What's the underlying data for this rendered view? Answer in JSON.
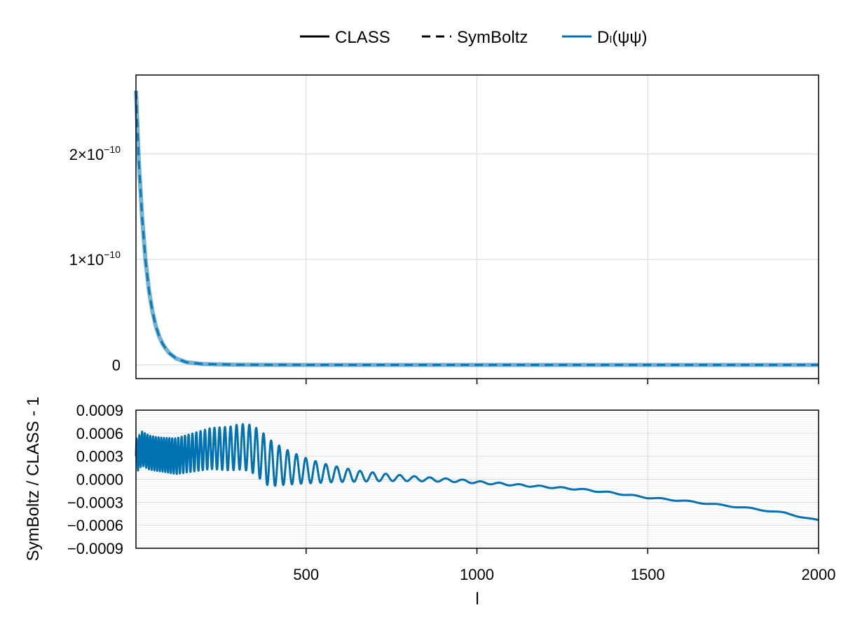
{
  "colors": {
    "class": "#000000",
    "symboltz": "#000000",
    "series": "#0072b2",
    "grid": "#d9d9d9"
  },
  "legend": {
    "position": "top-center",
    "items": [
      {
        "label": "CLASS",
        "style": "solid",
        "color": "#000000"
      },
      {
        "label": "SymBoltz",
        "style": "dashed",
        "color": "#000000"
      },
      {
        "label": "Dₗ(ψψ)",
        "style": "solid",
        "color": "#0072b2"
      }
    ]
  },
  "chart_data": [
    {
      "type": "line",
      "title": "",
      "xlabel": "",
      "ylabel": "",
      "xlim": [
        2,
        2000
      ],
      "ylim": [
        -1.3e-11,
        2.75e-10
      ],
      "grid": true,
      "x_ticks": [
        500,
        1000,
        1500,
        2000
      ],
      "x_ticklabels_visible": false,
      "y_ticks": [
        {
          "value": 0,
          "mantissa": "0",
          "exponent": ""
        },
        {
          "value": 1e-10,
          "mantissa": "1×10",
          "exponent": "−10"
        },
        {
          "value": 2e-10,
          "mantissa": "2×10",
          "exponent": "−10"
        }
      ],
      "series": [
        {
          "name": "CLASS",
          "style": "solid",
          "x": [
            2,
            10,
            20,
            30,
            40,
            50,
            60,
            70,
            80,
            90,
            100,
            120,
            150,
            200,
            300,
            500,
            1000,
            1500,
            2000
          ],
          "values": [
            2.6e-10,
            1.95e-10,
            1.4e-10,
            9.9e-11,
            7.1e-11,
            5.1e-11,
            3.7e-11,
            2.7e-11,
            2e-11,
            1.5e-11,
            1.1e-11,
            6e-12,
            2.5e-12,
            8e-13,
            1.5e-13,
            1e-14,
            0,
            0,
            0
          ]
        },
        {
          "name": "SymBoltz",
          "style": "dashed",
          "x": [
            2,
            10,
            20,
            30,
            40,
            50,
            60,
            70,
            80,
            90,
            100,
            120,
            150,
            200,
            300,
            500,
            1000,
            1500,
            2000
          ],
          "values": [
            2.6e-10,
            1.95e-10,
            1.4e-10,
            9.9e-11,
            7.1e-11,
            5.1e-11,
            3.7e-11,
            2.7e-11,
            2e-11,
            1.5e-11,
            1.1e-11,
            6e-12,
            2.5e-12,
            8e-13,
            1.5e-13,
            1e-14,
            0,
            0,
            0
          ]
        }
      ]
    },
    {
      "type": "line",
      "title": "",
      "xlabel": "l",
      "ylabel": "SymBoltz / CLASS - 1",
      "xlim": [
        2,
        2000
      ],
      "ylim": [
        -0.0009,
        0.0009
      ],
      "grid": true,
      "x_ticks": [
        500,
        1000,
        1500,
        2000
      ],
      "x_ticklabels": [
        "500",
        "1000",
        "1500",
        "2000"
      ],
      "y_ticks": [
        0.0009,
        0.0006,
        0.0003,
        0.0,
        -0.0003,
        -0.0006,
        -0.0009
      ],
      "y_ticklabels": [
        "0.0009",
        "0.0006",
        "0.0003",
        "0.0000",
        "−0.0003",
        "−0.0006",
        "−0.0009"
      ],
      "series": [
        {
          "name": "Dₗ(ψψ)",
          "x": [
            2,
            20,
            40,
            60,
            80,
            100,
            120,
            140,
            160,
            180,
            200,
            220,
            240,
            260,
            280,
            300,
            320,
            340,
            360,
            380,
            400,
            450,
            500,
            550,
            600,
            650,
            700,
            750,
            800,
            850,
            900,
            950,
            1000,
            1100,
            1200,
            1300,
            1400,
            1500,
            1600,
            1700,
            1800,
            1900,
            2000
          ],
          "values": [
            0.0003,
            0.0004,
            0.00035,
            0.00033,
            0.00032,
            0.00031,
            0.0003,
            0.00032,
            0.00034,
            0.00036,
            0.00038,
            0.0004,
            0.0004,
            0.0004,
            0.0004,
            0.00042,
            0.00042,
            0.0004,
            0.00034,
            0.00026,
            0.0002,
            0.00015,
            0.00011,
            8e-05,
            6e-05,
            4e-05,
            3e-05,
            2e-05,
            1e-05,
            0.0,
            -1e-05,
            -2e-05,
            -4e-05,
            -7e-05,
            -0.0001,
            -0.00013,
            -0.00018,
            -0.00024,
            -0.00028,
            -0.00033,
            -0.00038,
            -0.00044,
            -0.00054
          ]
        }
      ]
    }
  ]
}
